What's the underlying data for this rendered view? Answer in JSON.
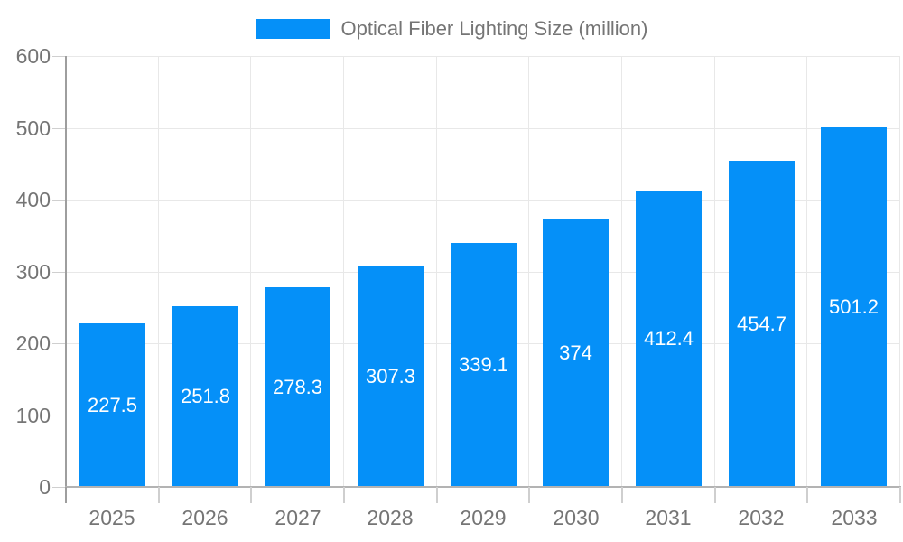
{
  "chart_data": {
    "type": "bar",
    "title": "Optical Fiber Lighting Size (million)",
    "categories": [
      "2025",
      "2026",
      "2027",
      "2028",
      "2029",
      "2030",
      "2031",
      "2032",
      "2033"
    ],
    "values": [
      227.5,
      251.8,
      278.3,
      307.3,
      339.1,
      374,
      412.4,
      454.7,
      501.2
    ],
    "value_labels": [
      "227.5",
      "251.8",
      "278.3",
      "307.3",
      "339.1",
      "374",
      "412.4",
      "454.7",
      "501.2"
    ],
    "xlabel": "",
    "ylabel": "",
    "ylim": [
      0,
      600
    ],
    "y_ticks": [
      0,
      100,
      200,
      300,
      400,
      500,
      600
    ],
    "y_tick_labels": [
      "0",
      "100",
      "200",
      "300",
      "400",
      "500",
      "600"
    ],
    "grid": true,
    "legend_position": "top-center",
    "bar_color": "#0590f8",
    "value_label_color": "#ffffff",
    "background_color": "#ffffff"
  },
  "legend": {
    "label": "Optical Fiber Lighting Size (million)",
    "swatch_color": "#0590f8"
  },
  "styles": {
    "axis_text_color": "#757575",
    "gridline_color": "#e8e8e8",
    "x_axis_color": "#b3b3b3",
    "y_axis_color": "#9e9e9e",
    "tick_color": "#cfcfcf"
  }
}
